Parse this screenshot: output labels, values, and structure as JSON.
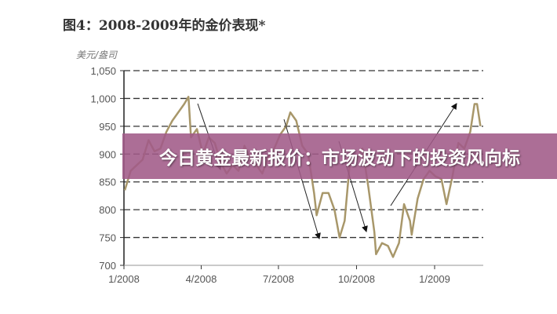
{
  "banner": {
    "text": "今日黄金最新报价：市场波动下的投资风向标",
    "color": "#a05a87"
  },
  "chart_data": {
    "type": "line",
    "title": "图4：2008-2009年的金价表现*",
    "ylabel": "美元/盎司",
    "xlabel": "",
    "ylim": [
      700,
      1050
    ],
    "yticks": [
      "1,050",
      "1,000",
      "950",
      "900",
      "850",
      "800",
      "750",
      "700"
    ],
    "ytick_values": [
      1050,
      1000,
      950,
      900,
      850,
      800,
      750,
      700
    ],
    "xticks": [
      "1/2008",
      "4/2008",
      "7/2008",
      "10/2008",
      "1/2009"
    ],
    "xtick_dates": [
      "2008-01-01",
      "2008-04-01",
      "2008-07-01",
      "2008-10-01",
      "2009-01-01"
    ],
    "xlim": [
      "2008-01-01",
      "2009-02-28"
    ],
    "grid": "horizontal dashed",
    "line_color": "#a8976a",
    "series": [
      {
        "x": [
          "2008-01-02",
          "2008-01-09",
          "2008-01-16",
          "2008-01-23",
          "2008-01-30",
          "2008-02-06",
          "2008-02-13",
          "2008-02-20",
          "2008-02-27",
          "2008-03-05",
          "2008-03-12",
          "2008-03-17",
          "2008-03-20",
          "2008-03-27",
          "2008-04-03",
          "2008-04-10",
          "2008-04-17",
          "2008-04-24",
          "2008-05-01",
          "2008-05-08",
          "2008-05-15",
          "2008-05-22",
          "2008-05-29",
          "2008-06-05",
          "2008-06-12",
          "2008-06-19",
          "2008-06-26",
          "2008-07-03",
          "2008-07-10",
          "2008-07-15",
          "2008-07-22",
          "2008-07-29",
          "2008-08-05",
          "2008-08-12",
          "2008-08-15",
          "2008-08-22",
          "2008-08-29",
          "2008-09-05",
          "2008-09-11",
          "2008-09-17",
          "2008-09-24",
          "2008-10-01",
          "2008-10-08",
          "2008-10-15",
          "2008-10-22",
          "2008-10-24",
          "2008-10-31",
          "2008-11-07",
          "2008-11-13",
          "2008-11-20",
          "2008-11-26",
          "2008-12-03",
          "2008-12-05",
          "2008-12-12",
          "2008-12-19",
          "2008-12-26",
          "2009-01-02",
          "2009-01-09",
          "2009-01-15",
          "2009-01-22",
          "2009-01-29",
          "2009-02-05",
          "2009-02-12",
          "2009-02-17",
          "2009-02-20",
          "2009-02-24"
        ],
        "values": [
          835,
          870,
          880,
          890,
          925,
          905,
          910,
          940,
          960,
          975,
          990,
          1003,
          930,
          945,
          900,
          930,
          920,
          885,
          865,
          880,
          870,
          915,
          890,
          880,
          865,
          895,
          910,
          935,
          950,
          975,
          960,
          915,
          900,
          830,
          790,
          830,
          830,
          800,
          750,
          780,
          900,
          890,
          910,
          840,
          760,
          720,
          740,
          735,
          715,
          740,
          810,
          780,
          755,
          820,
          855,
          870,
          860,
          855,
          810,
          860,
          920,
          910,
          940,
          990,
          990,
          950
        ]
      }
    ]
  }
}
